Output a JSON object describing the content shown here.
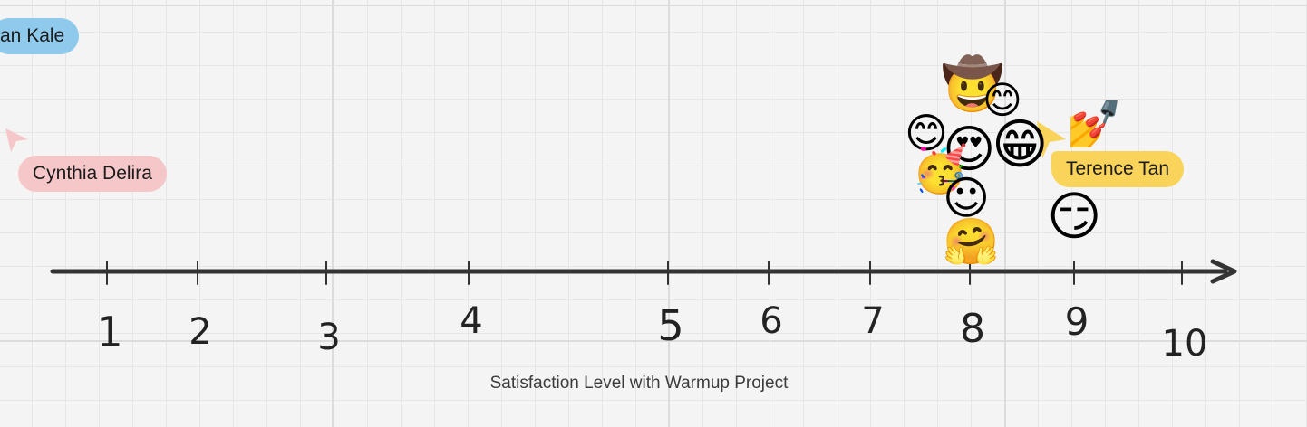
{
  "name_tags": {
    "kale": "an Kale",
    "cynthia": "Cynthia Delira",
    "terence": "Terence Tan"
  },
  "axis": {
    "ticks": [
      "1",
      "2",
      "3",
      "4",
      "5",
      "6",
      "7",
      "8",
      "9",
      "10"
    ],
    "caption": "Satisfaction Level with Warmup Project"
  },
  "reactions": [
    {
      "icon": "cowboy-face-emoji",
      "char": "🤠"
    },
    {
      "icon": "smiling-face-emoji",
      "char": "😊"
    },
    {
      "icon": "smiling-face-emoji",
      "char": "😊"
    },
    {
      "icon": "heart-eyes-emoji",
      "char": "😍"
    },
    {
      "icon": "grinning-face-emoji",
      "char": "😁"
    },
    {
      "icon": "partying-face-emoji",
      "char": "🥳"
    },
    {
      "icon": "relieved-face-emoji",
      "char": "☺"
    },
    {
      "icon": "hugging-face-emoji",
      "char": "🤗"
    },
    {
      "icon": "smirking-face-emoji",
      "char": "😏"
    },
    {
      "icon": "nail-polish-emoji",
      "char": "💅"
    }
  ],
  "colors": {
    "kale_tag": "#8fc9ec",
    "cynthia_tag": "#f6c7c9",
    "terence_tag": "#f9d35a",
    "axis": "#333333"
  }
}
